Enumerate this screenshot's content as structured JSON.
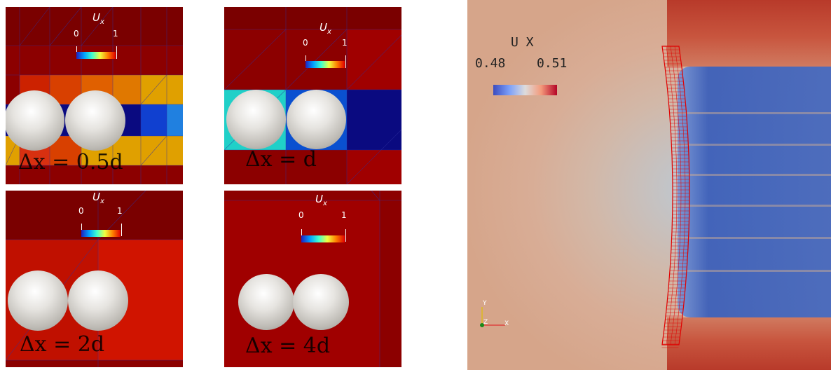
{
  "panels": [
    {
      "ux_label": "U",
      "ux_sub": "x",
      "tick_min": "0",
      "tick_max": "1",
      "dx_label": "Δx = 0.5d"
    },
    {
      "ux_label": "U",
      "ux_sub": "x",
      "tick_min": "0",
      "tick_max": "1",
      "dx_label": "Δx = d"
    },
    {
      "ux_label": "U",
      "ux_sub": "x",
      "tick_min": "0",
      "tick_max": "1",
      "dx_label": "Δx = 2d"
    },
    {
      "ux_label": "U",
      "ux_sub": "x",
      "tick_min": "0",
      "tick_max": "1",
      "dx_label": "Δx = 4d"
    }
  ],
  "right_panel": {
    "colorbar_title": "U X",
    "tick_min": "0.48",
    "tick_max": "0.51",
    "axes": {
      "y": "Y",
      "z": "Z",
      "x": "X"
    }
  },
  "colors": {
    "cell_dark": "#8c0000",
    "cell_red": "#a00000",
    "rotor_mesh": "#e00000"
  }
}
